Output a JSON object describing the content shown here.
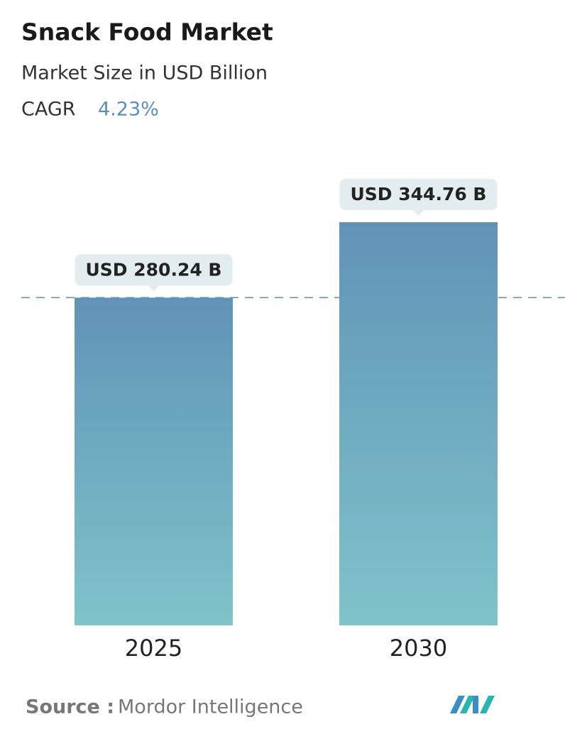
{
  "chart_data": {
    "type": "bar",
    "title": "Snack Food Market",
    "subtitle": "Market Size in USD Billion",
    "cagr_label": "CAGR",
    "cagr_value": "4.23%",
    "categories": [
      "2025",
      "2030"
    ],
    "values": [
      280.24,
      344.76
    ],
    "value_labels": [
      "USD 280.24 B",
      "USD 344.76 B"
    ],
    "source_label": "Source :",
    "source": "Mordor Intelligence"
  }
}
